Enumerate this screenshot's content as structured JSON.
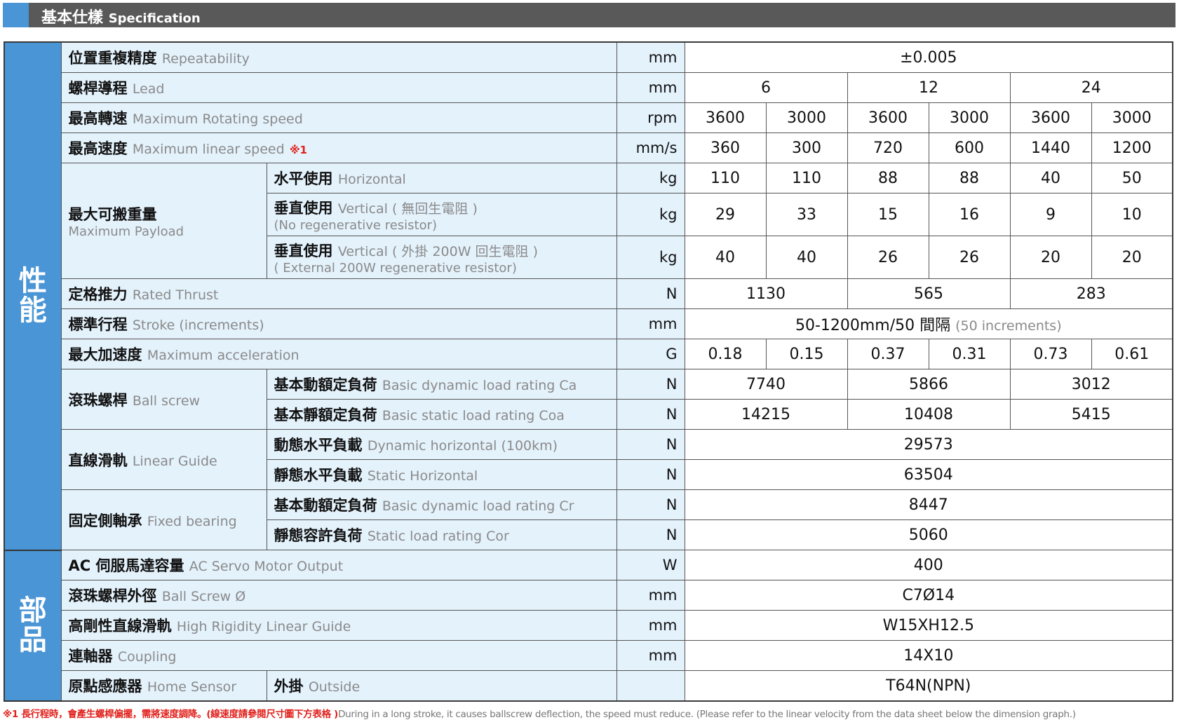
{
  "header": {
    "title_zh": "基本仕樣",
    "title_en": "Specification"
  },
  "sections": [
    {
      "label": "性能",
      "rows": [
        {
          "zh": "位置重複精度",
          "en": "Repeatability",
          "unit": "mm",
          "values": [
            "±0.005"
          ]
        },
        {
          "zh": "螺桿導程",
          "en": "Lead",
          "unit": "mm",
          "values": [
            "6",
            "12",
            "24"
          ]
        },
        {
          "zh": "最高轉速",
          "en": "Maximum Rotating speed",
          "unit": "rpm",
          "values": [
            "3600",
            "3000",
            "3600",
            "3000",
            "3600",
            "3000"
          ]
        },
        {
          "zh": "最高速度",
          "en": "Maximum linear speed",
          "note": "※1",
          "unit": "mm/s",
          "values": [
            "360",
            "300",
            "720",
            "600",
            "1440",
            "1200"
          ]
        },
        {
          "zh": "最大可搬重量",
          "en": "Maximum Payload",
          "block": true,
          "sub": [
            {
              "zh": "水平使用",
              "en": "Horizontal",
              "unit": "kg",
              "values": [
                "110",
                "110",
                "88",
                "88",
                "40",
                "50"
              ]
            },
            {
              "zh": "垂直使用",
              "en": "Vertical ( 無回生電阻 )",
              "en2": "(No regenerative resistor)",
              "unit": "kg",
              "values": [
                "29",
                "33",
                "15",
                "16",
                "9",
                "10"
              ]
            },
            {
              "zh": "垂直使用",
              "en": "Vertical ( 外掛 200W 回生電阻 )",
              "en2": "( External 200W regenerative resistor)",
              "unit": "kg",
              "values": [
                "40",
                "40",
                "26",
                "26",
                "20",
                "20"
              ]
            }
          ]
        },
        {
          "zh": "定格推力",
          "en": "Rated Thrust",
          "unit": "N",
          "values": [
            "1130",
            "565",
            "283"
          ]
        },
        {
          "zh": "標準行程",
          "en": "Stroke (increments)",
          "unit": "mm",
          "values": [
            {
              "main": "50-1200mm/50 間隔",
              "note": "(50 increments)"
            }
          ]
        },
        {
          "zh": "最大加速度",
          "en": "Maximum acceleration",
          "unit": "G",
          "values": [
            "0.18",
            "0.15",
            "0.37",
            "0.31",
            "0.73",
            "0.61"
          ]
        },
        {
          "zh": "滾珠螺桿",
          "en": "Ball screw",
          "sub": [
            {
              "zh": "基本動額定負荷",
              "en": "Basic dynamic load rating Ca",
              "unit": "N",
              "values": [
                "7740",
                "5866",
                "3012"
              ]
            },
            {
              "zh": "基本靜額定負荷",
              "en": "Basic static load rating Coa",
              "unit": "N",
              "values": [
                "14215",
                "10408",
                "5415"
              ]
            }
          ]
        },
        {
          "zh": "直線滑軌",
          "en": "Linear Guide",
          "sub": [
            {
              "zh": "動態水平負載",
              "en": "Dynamic horizontal (100km)",
              "unit": "N",
              "values": [
                "29573"
              ]
            },
            {
              "zh": "靜態水平負載",
              "en": "Static Horizontal",
              "unit": "N",
              "values": [
                "63504"
              ]
            }
          ]
        },
        {
          "zh": "固定側軸承",
          "en": "Fixed bearing",
          "sub": [
            {
              "zh": "基本動額定負荷",
              "en": "Basic dynamic load rating Cr",
              "unit": "N",
              "values": [
                "8447"
              ]
            },
            {
              "zh": "靜態容許負荷",
              "en": "Static load rating Cor",
              "unit": "N",
              "values": [
                "5060"
              ]
            }
          ]
        }
      ]
    },
    {
      "label": "部品",
      "rows": [
        {
          "zh": "AC 伺服馬達容量",
          "en": "AC Servo Motor Output",
          "unit": "W",
          "values": [
            "400"
          ]
        },
        {
          "zh": "滾珠螺桿外徑",
          "en": "Ball Screw Ø",
          "unit": "mm",
          "values": [
            "C7Ø14"
          ]
        },
        {
          "zh": "高剛性直線滑軌",
          "en": "High Rigidity Linear Guide",
          "unit": "mm",
          "values": [
            "W15XH12.5"
          ]
        },
        {
          "zh": "連軸器",
          "en": "Coupling",
          "unit": "mm",
          "values": [
            "14X10"
          ]
        },
        {
          "zh": "原點感應器",
          "en": "Home Sensor",
          "sub": [
            {
              "zh": "外掛",
              "en": "Outside",
              "unit": "",
              "values": [
                "T64N(NPN)"
              ]
            }
          ]
        }
      ]
    }
  ],
  "footnote": {
    "zh": "※1 長行程時，會產生螺桿偏擺，需將速度調降。(線速度請參閱尺寸圖下方表格 )",
    "en": "During in a long stroke, it causes ballscrew deflection, the speed must reduce. (Please refer to the linear velocity from the data sheet below the dimension graph.)"
  },
  "colors": {
    "side": "#4a95d5",
    "label_bg": "#e4f2fc",
    "header_bg": "#595959",
    "note": "#e0201b"
  }
}
